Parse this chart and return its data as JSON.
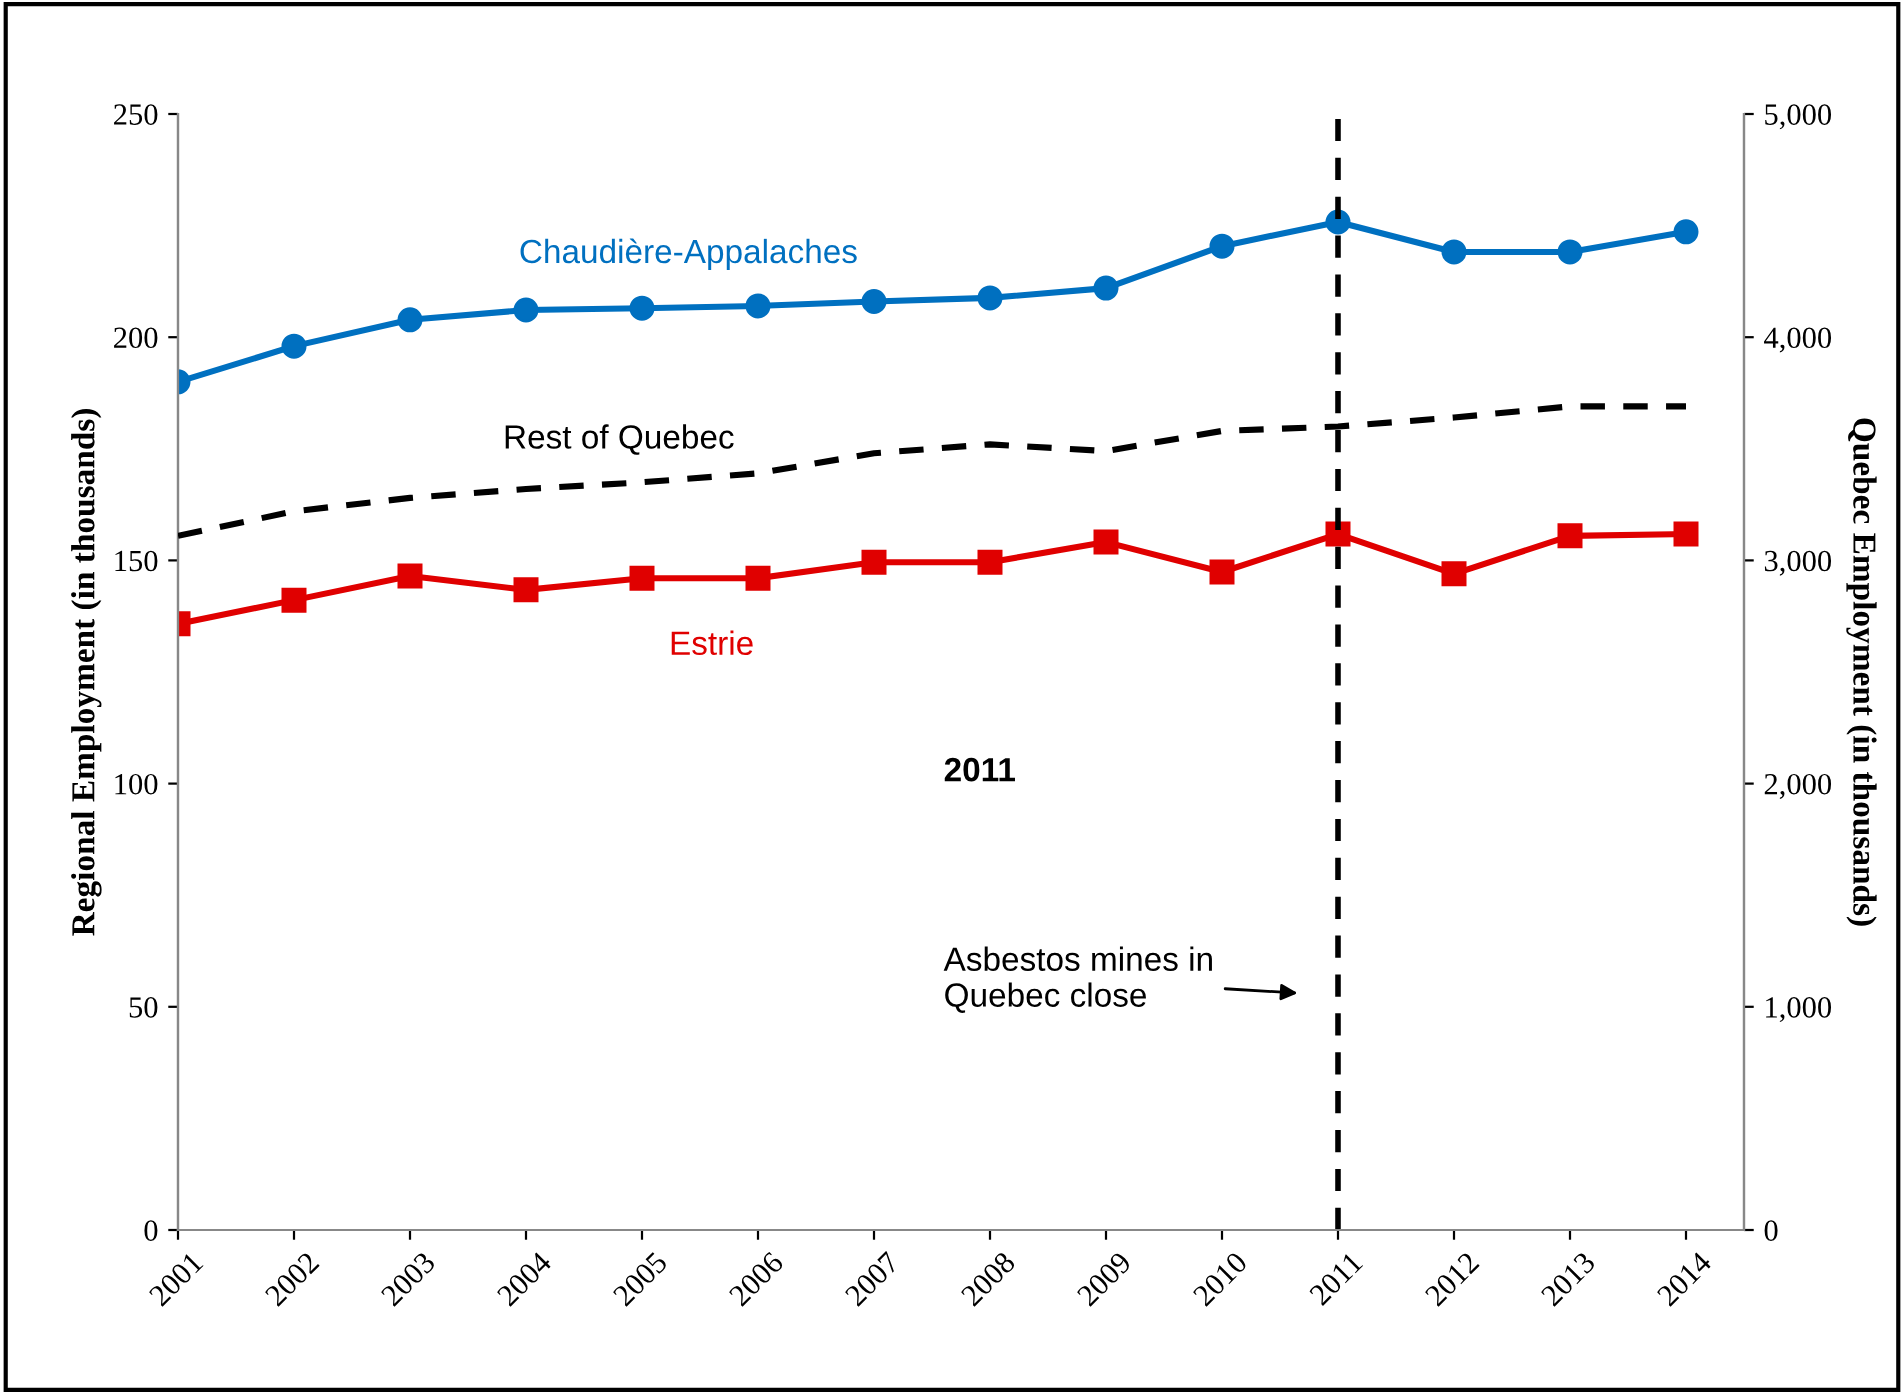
{
  "chart_data": {
    "type": "line",
    "ylabel": "Regional Employment (in thousands)",
    "y2label": "Quebec Employment (in thousands)",
    "categories": [
      "2001",
      "2002",
      "2003",
      "2004",
      "2005",
      "2006",
      "2007",
      "2008",
      "2009",
      "2010",
      "2011",
      "2012",
      "2013",
      "2014"
    ],
    "series": [
      {
        "name": "Chaudière-Appalaches",
        "color": "#0070c0",
        "marker": "circle",
        "line_style": "solid",
        "values": [
          190.0,
          198.0,
          203.9,
          206.1,
          206.5,
          207.0,
          208.0,
          208.8,
          211.0,
          220.4,
          225.8,
          219.1,
          219.1,
          223.6
        ]
      },
      {
        "name": "Rest of Quebec",
        "color": "#000000",
        "marker": "none",
        "line_style": "dashed",
        "axis": "y2",
        "values": [
          3110,
          3220,
          3280,
          3320,
          3350,
          3390,
          3480,
          3520,
          3490,
          3580,
          3600,
          3640,
          3690,
          3690
        ]
      },
      {
        "name": "Estrie",
        "color": "#e00000",
        "marker": "square",
        "line_style": "solid",
        "values": [
          135.8,
          141.1,
          146.5,
          143.4,
          146.0,
          146.0,
          149.6,
          149.6,
          154.1,
          147.4,
          155.9,
          147.0,
          155.5,
          155.9
        ]
      }
    ],
    "ylim": [
      0,
      250
    ],
    "yticks": [
      0,
      50,
      100,
      150,
      200,
      250
    ],
    "y2lim": [
      0,
      5000
    ],
    "y2ticks": [
      {
        "value": 0,
        "label": "0"
      },
      {
        "value": 1000,
        "label": "1,000"
      },
      {
        "value": 2000,
        "label": "2,000"
      },
      {
        "value": 3000,
        "label": "3,000"
      },
      {
        "value": 4000,
        "label": "4,000"
      },
      {
        "value": 5000,
        "label": "5,000"
      }
    ],
    "ref_lines": [
      {
        "axis": "x",
        "value": "2011",
        "color": "#000000",
        "line_style": "dashed"
      }
    ],
    "annotations": [
      "2011",
      "Asbestos mines in\nQuebec close"
    ],
    "grid": false,
    "legend": false
  }
}
